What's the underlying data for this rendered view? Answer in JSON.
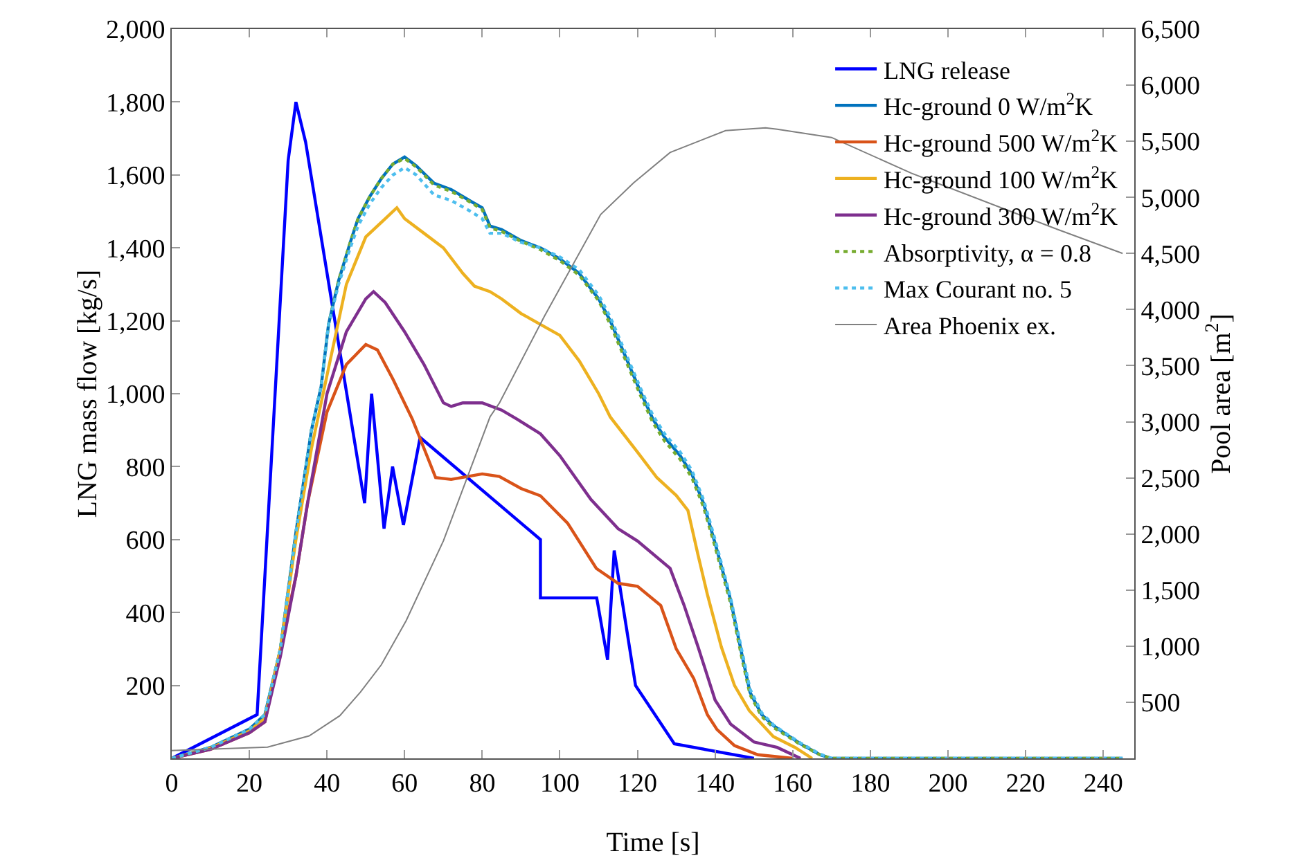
{
  "chart_data": {
    "type": "line",
    "xlabel": "Time [s]",
    "ylabel": "LNG mass flow [kg/s]",
    "y2label": "Pool area [m$^{2}$]",
    "xlim": [
      0,
      248
    ],
    "xticks": [
      0,
      20,
      40,
      60,
      80,
      100,
      120,
      140,
      160,
      180,
      200,
      220,
      240
    ],
    "ylim": [
      0,
      2000
    ],
    "yticks": [
      200,
      400,
      600,
      800,
      {
        "value": 1000,
        "label": "1,000"
      },
      {
        "value": 1200,
        "label": "1,200"
      },
      {
        "value": 1400,
        "label": "1,400"
      },
      {
        "value": 1600,
        "label": "1,600"
      },
      {
        "value": 1800,
        "label": "1,800"
      },
      {
        "value": 2000,
        "label": "2,000"
      }
    ],
    "y2lim": [
      0,
      6500
    ],
    "y2ticks": [
      500,
      {
        "value": 1000,
        "label": "1,000"
      },
      {
        "value": 1500,
        "label": "1,500"
      },
      {
        "value": 2000,
        "label": "2,000"
      },
      {
        "value": 2500,
        "label": "2,500"
      },
      {
        "value": 3000,
        "label": "3,000"
      },
      {
        "value": 3500,
        "label": "3,500"
      },
      {
        "value": 4000,
        "label": "4,000"
      },
      {
        "value": 4500,
        "label": "4,500"
      },
      {
        "value": 5000,
        "label": "5,000"
      },
      {
        "value": 5500,
        "label": "5,500"
      },
      {
        "value": 6000,
        "label": "6,000"
      },
      {
        "value": 6500,
        "label": "6,500"
      }
    ],
    "grid": false,
    "legend": "top right",
    "marker": "none",
    "series": [
      {
        "name": "LNG release",
        "color": "#0000ff",
        "line_style": "solid",
        "x": [
          0,
          22,
          30,
          32,
          34.5,
          49.7,
          51.5,
          54.7,
          56.9,
          59.7,
          64,
          95,
          95,
          109.5,
          112.3,
          114,
          119.5,
          129.5,
          150
        ],
        "values": [
          0,
          120,
          1640,
          1800,
          1690,
          700,
          1000,
          630,
          800,
          640,
          880,
          600,
          440,
          440,
          270,
          570,
          200,
          40,
          0
        ]
      },
      {
        "name": "Hc-ground 0 W/m$^{2}$K",
        "color": "#0072bd",
        "line_style": "solid",
        "x": [
          0,
          10,
          20,
          24,
          28,
          32,
          36,
          38.5,
          40.4,
          43,
          46,
          48,
          51,
          54,
          57,
          60,
          63,
          67.6,
          72,
          77,
          80,
          82,
          85,
          90,
          95,
          100,
          105,
          110,
          113,
          117,
          121,
          124,
          127,
          131,
          134,
          137,
          140,
          144,
          147,
          149,
          152,
          155,
          158,
          162,
          167,
          170,
          200,
          245
        ],
        "values": [
          0,
          30,
          80,
          120,
          300,
          620,
          900,
          1020,
          1190,
          1310,
          1415,
          1480,
          1540,
          1590,
          1630,
          1649,
          1625,
          1577,
          1560,
          1528,
          1510,
          1460,
          1450,
          1420,
          1400,
          1370,
          1330,
          1260,
          1200,
          1100,
          1000,
          930,
          880,
          830,
          780,
          700,
          590,
          434,
          280,
          181,
          120,
          90,
          68,
          40,
          10,
          0,
          0,
          0
        ]
      },
      {
        "name": "Hc-ground 500 W/m$^{2}$K",
        "color": "#d95319",
        "line_style": "solid",
        "x": [
          0,
          10,
          20,
          24,
          28,
          32,
          35,
          40,
          45,
          50,
          53,
          57,
          62,
          65,
          68,
          72,
          80,
          84.4,
          90,
          95,
          102,
          109.4,
          115,
          120,
          126,
          130,
          134.5,
          138,
          140.5,
          145,
          151,
          160
        ],
        "values": [
          0,
          25,
          70,
          100,
          300,
          500,
          700,
          950,
          1080,
          1135,
          1120,
          1040,
          930,
          850,
          770,
          765,
          780,
          773,
          740,
          720,
          645,
          521,
          480,
          472,
          419,
          300,
          219,
          120,
          79,
          35,
          10,
          0
        ]
      },
      {
        "name": "Hc-ground 100 W/m$^{2}$K",
        "color": "#edb120",
        "line_style": "solid",
        "x": [
          0,
          10,
          20,
          24,
          28,
          32,
          36,
          40,
          45,
          50,
          55,
          58,
          60,
          65,
          70,
          75,
          78,
          82,
          85,
          90,
          95,
          100,
          105,
          110,
          113,
          120,
          125,
          130,
          133,
          135.6,
          138,
          141.6,
          145,
          148.8,
          155,
          160.6,
          165
        ],
        "values": [
          0,
          28,
          75,
          110,
          300,
          600,
          850,
          1050,
          1300,
          1430,
          1480,
          1510,
          1480,
          1440,
          1400,
          1330,
          1295,
          1280,
          1260,
          1220,
          1190,
          1160,
          1090,
          1000,
          936,
          840,
          770,
          721,
          680,
          558,
          450,
          306,
          200,
          131,
          60,
          30,
          0
        ]
      },
      {
        "name": "Hc-ground 300 W/m$^{2}$K",
        "color": "#7e2f8e",
        "line_style": "solid",
        "x": [
          0,
          10,
          20,
          24,
          28,
          32,
          35,
          40,
          45,
          50,
          52,
          55,
          60,
          65,
          70,
          72,
          75,
          80,
          85,
          89,
          95,
          100,
          108,
          115,
          120,
          128.4,
          132,
          135.6,
          140,
          144,
          150,
          156,
          162
        ],
        "values": [
          0,
          25,
          70,
          100,
          280,
          500,
          700,
          1000,
          1170,
          1260,
          1280,
          1250,
          1170,
          1080,
          975,
          965,
          975,
          975,
          955,
          930,
          890,
          830,
          710,
          630,
          596,
          521,
          420,
          306,
          160,
          94,
          45,
          30,
          0
        ]
      },
      {
        "name": "Absorptivity, α = 0.8",
        "color": "#77ac30",
        "line_style": "dotted",
        "x": [
          0,
          10,
          20,
          24,
          28,
          32,
          36,
          38.5,
          40.4,
          43,
          46,
          48,
          51,
          54,
          57,
          60,
          63,
          67.6,
          72,
          77,
          80,
          82,
          85,
          90,
          95,
          100,
          105,
          110,
          113,
          117,
          121,
          124,
          127,
          131,
          134,
          137,
          140,
          144,
          147,
          149,
          152,
          155,
          158,
          162,
          167,
          170,
          200,
          245
        ],
        "values": [
          0,
          30,
          80,
          120,
          300,
          620,
          900,
          1020,
          1190,
          1310,
          1415,
          1480,
          1540,
          1590,
          1630,
          1645,
          1622,
          1572,
          1555,
          1525,
          1505,
          1455,
          1445,
          1418,
          1395,
          1365,
          1325,
          1255,
          1190,
          1090,
          990,
          920,
          870,
          820,
          770,
          690,
          580,
          425,
          270,
          175,
          115,
          85,
          65,
          38,
          10,
          0,
          0,
          0
        ]
      },
      {
        "name": "Max Courant no. 5",
        "color": "#4dbeee",
        "line_style": "dotted",
        "x": [
          0,
          10,
          20,
          24,
          28,
          32,
          36,
          38.5,
          40.4,
          43,
          46,
          48,
          51,
          54,
          57,
          60,
          63,
          67.6,
          72,
          77,
          80,
          82,
          85,
          90,
          95,
          100,
          105,
          110,
          113,
          117,
          121,
          124,
          127,
          131,
          134,
          137,
          140,
          144,
          147,
          149,
          152,
          155,
          158,
          162,
          167,
          170,
          200,
          245
        ],
        "values": [
          0,
          30,
          80,
          120,
          300,
          620,
          900,
          1020,
          1190,
          1300,
          1400,
          1460,
          1520,
          1565,
          1600,
          1620,
          1600,
          1545,
          1530,
          1500,
          1480,
          1440,
          1440,
          1415,
          1400,
          1375,
          1340,
          1270,
          1210,
          1110,
          1010,
          940,
          890,
          840,
          790,
          710,
          600,
          440,
          290,
          190,
          125,
          92,
          70,
          42,
          12,
          0,
          0,
          0
        ]
      },
      {
        "name": "Area Phoenix ex.",
        "color": "#808080",
        "line_style": "solid",
        "axis": "y2",
        "x": [
          0,
          24.7,
          35.4,
          43.3,
          48.6,
          54,
          60.4,
          70,
          82,
          84.4,
          96,
          110.5,
          119,
          128.4,
          142.7,
          153,
          156,
          170,
          190.6,
          227.5,
          245
        ],
        "values": [
          70,
          100,
          200,
          380,
          590,
          834,
          1227,
          1939,
          3043,
          3166,
          3939,
          4847,
          5129,
          5400,
          5595,
          5620,
          5607,
          5534,
          5215,
          4724,
          4500
        ]
      }
    ]
  }
}
